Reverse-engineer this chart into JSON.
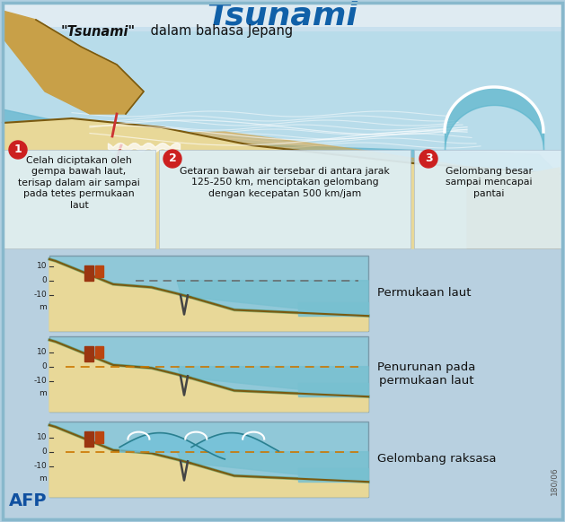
{
  "title": "Tsunami",
  "subtitle_italic": "\"Tsunami\"",
  "subtitle_regular": " dalam bahasa Jepang",
  "bg_color": "#b0cfe0",
  "top_illus_bg": "#c8e0ee",
  "label_box_bg": "#d8edf5",
  "bottom_section_bg": "#c0d8e8",
  "label1_text": "Celah diciptakan oleh\ngempa bawah laut,\nterisap dalam air sampai\npada tetes permukaan\nlaut",
  "label2_text": "Getaran bawah air tersebar di antara jarak\n125-250 km, menciptakan gelombang\ndengan kecepatan 500 km/jam",
  "label3_text": "Gelombang besar\nsampai mencapai\npantai",
  "panel1_label": "Permukaan laut",
  "panel2_label": "Penurunan pada\npermukaan laut",
  "panel3_label": "Gelombang raksasa",
  "afp_text": "AFP",
  "watermark": "180/06",
  "sand_color": "#e8d898",
  "sand_dark": "#c8a840",
  "water_color_light": "#88ccd8",
  "water_color_mid": "#60b0c8",
  "wave_outline": "#2a8090",
  "seabed_line": "#7a5a10",
  "num_circle_color": "#cc2020",
  "title_color": "#1060a8",
  "dashed_grey": "#888888",
  "dashed_orange": "#cc8800",
  "building1_color": "#9b3510",
  "building2_color": "#bb4510",
  "crack_color": "#444444",
  "white": "#ffffff",
  "panel_border": "#7a9aaa"
}
